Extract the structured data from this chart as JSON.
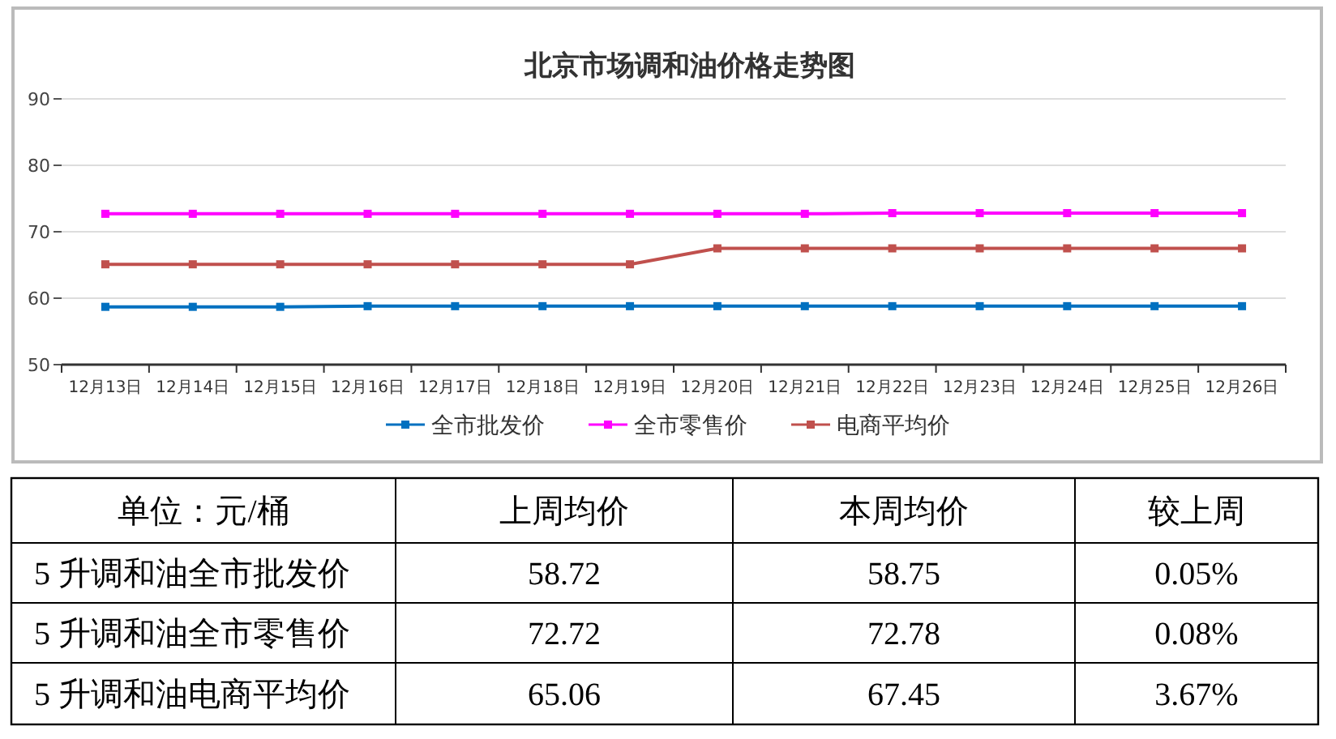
{
  "chart_data": [
    {
      "type": "line",
      "title": "北京市场调和油价格走势图",
      "categories": [
        "12月13日",
        "12月14日",
        "12月15日",
        "12月16日",
        "12月17日",
        "12月18日",
        "12月19日",
        "12月20日",
        "12月21日",
        "12月22日",
        "12月23日",
        "12月24日",
        "12月25日",
        "12月26日"
      ],
      "series": [
        {
          "name": "全市批发价",
          "color": "#0070c0",
          "values": [
            58.7,
            58.7,
            58.7,
            58.8,
            58.8,
            58.8,
            58.8,
            58.8,
            58.8,
            58.8,
            58.8,
            58.8,
            58.8,
            58.8
          ]
        },
        {
          "name": "全市零售价",
          "color": "#ff00ff",
          "values": [
            72.7,
            72.7,
            72.7,
            72.7,
            72.7,
            72.7,
            72.7,
            72.7,
            72.7,
            72.8,
            72.8,
            72.8,
            72.8,
            72.8
          ]
        },
        {
          "name": "电商平均价",
          "color": "#c0504d",
          "values": [
            65.1,
            65.1,
            65.1,
            65.1,
            65.1,
            65.1,
            65.1,
            67.5,
            67.5,
            67.5,
            67.5,
            67.5,
            67.5,
            67.5
          ]
        }
      ],
      "ylim": [
        50,
        90
      ],
      "yticks": [
        50,
        60,
        70,
        80,
        90
      ],
      "grid": "y",
      "legend": "bottom",
      "marker": "square",
      "line_style": "solid"
    },
    {
      "type": "other",
      "annotations": [
        "单位：元/桶",
        "上周均价",
        "本周均价",
        "较上周",
        "5 升调和油全市批发价",
        "58.72",
        "58.75",
        "0.05%",
        "5 升调和油全市零售价",
        "72.72",
        "72.78",
        "0.08%",
        "5 升调和油电商平均价",
        "65.06",
        "67.45",
        "3.67%"
      ]
    }
  ]
}
